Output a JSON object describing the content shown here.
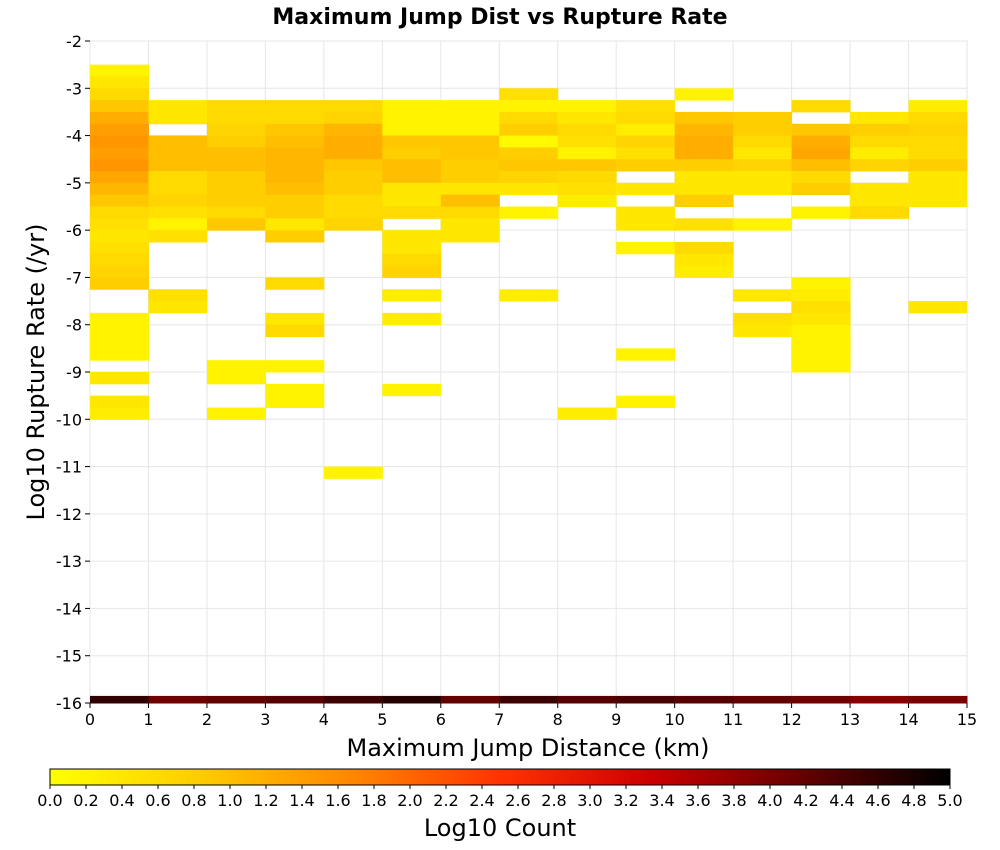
{
  "chart_data": {
    "type": "heatmap",
    "title": "Maximum Jump Dist vs Rupture Rate",
    "xlabel": "Maximum Jump Distance (km)",
    "ylabel": "Log10 Rupture Rate (/yr)",
    "xlim": [
      0,
      15
    ],
    "ylim": [
      -16,
      -2
    ],
    "x_ticks": [
      "0",
      "1",
      "2",
      "3",
      "4",
      "5",
      "6",
      "7",
      "8",
      "9",
      "10",
      "11",
      "12",
      "13",
      "14",
      "15"
    ],
    "y_ticks": [
      "-2",
      "-3",
      "-4",
      "-5",
      "-6",
      "-7",
      "-8",
      "-9",
      "-10",
      "-11",
      "-12",
      "-13",
      "-14",
      "-15",
      "-16"
    ],
    "grid": true,
    "x_bin_width": 1,
    "y_bin_height": 0.25,
    "colorscale": {
      "label": "Log10 Count",
      "min": 0.0,
      "max": 5.0,
      "ticks": [
        "0.0",
        "0.2",
        "0.4",
        "0.6",
        "0.8",
        "1.0",
        "1.2",
        "1.4",
        "1.6",
        "1.8",
        "2.0",
        "2.2",
        "2.4",
        "2.6",
        "2.8",
        "3.0",
        "3.2",
        "3.4",
        "3.6",
        "3.8",
        "4.0",
        "4.2",
        "4.4",
        "4.6",
        "4.8",
        "5.0"
      ],
      "colors": [
        "#ffff00",
        "#ffcc00",
        "#ff8800",
        "#ff3300",
        "#cc0000",
        "#660000",
        "#000000"
      ]
    },
    "columns": [
      {
        "x": 0,
        "y_start": -2.5,
        "values": [
          0.2,
          0.4,
          0.6,
          0.9,
          1.2,
          1.4,
          1.5,
          1.4,
          1.5,
          1.3,
          1.1,
          0.9,
          0.6,
          0.5,
          0.4,
          0.5,
          0.6,
          0.7,
          0.8,
          0,
          0,
          0.2,
          0.2,
          0.2,
          0.2,
          0,
          0.4,
          0,
          0,
          0.3
        ]
      },
      {
        "x": 1,
        "y_start": -3.25,
        "values": [
          0.4,
          0.4,
          0,
          1.0,
          1.0,
          1.0,
          0.6,
          0.6,
          0.7,
          0.5,
          0.2,
          0.5,
          0,
          0,
          0,
          0,
          0.5,
          0.4
        ]
      },
      {
        "x": 2,
        "y_start": -3.25,
        "values": [
          0.6,
          0.6,
          0.7,
          0.8,
          1.0,
          1.0,
          0.8,
          0.8,
          0.8,
          0.6,
          0.9
        ]
      },
      {
        "x": 3,
        "y_start": -3.25,
        "values": [
          0.6,
          0.6,
          0.9,
          1.0,
          1.1,
          1.1,
          1.1,
          1.0,
          0.8,
          0.8,
          0.4,
          0.8,
          0,
          0,
          0,
          0.6,
          0,
          0,
          0.4,
          0.6
        ]
      },
      {
        "x": 4,
        "y_start": -3.25,
        "values": [
          0.6,
          0.7,
          1.1,
          1.2,
          1.2,
          0.9,
          0.8,
          0.8,
          0.6,
          0.6,
          0.7
        ]
      },
      {
        "x": 5,
        "y_start": -3.25,
        "values": [
          0.2,
          0.2,
          0.2,
          0.9,
          0.8,
          1.0,
          1.0,
          0.4,
          0.4,
          0.6,
          0,
          0.4,
          0.4,
          0.6,
          0.7
        ]
      },
      {
        "x": 6,
        "y_start": -3.25,
        "values": [
          0.2,
          0.2,
          0.2,
          0.9,
          0.9,
          0.8,
          0.8,
          0.4,
          1.0,
          0.6,
          0.4,
          0.4
        ]
      },
      {
        "x": 7,
        "y_start": -3.0,
        "values": [
          0.5,
          0.2,
          0.6,
          0.8,
          0.1,
          0.8,
          0.9,
          0.7,
          0.4,
          0,
          0.2
        ]
      },
      {
        "x": 8,
        "y_start": -3.25,
        "values": [
          0.2,
          0.4,
          0.6,
          0.5,
          0.2,
          0.9,
          0.6,
          0.5,
          0.3
        ]
      },
      {
        "x": 9,
        "y_start": -3.25,
        "values": [
          0.5,
          0.6,
          0.3,
          0.7,
          0.5,
          0.8,
          0,
          0.4,
          0,
          0.4,
          0.4,
          0,
          0.2
        ]
      },
      {
        "x": 10,
        "y_start": -3.0,
        "values": [
          0.2,
          0,
          0.9,
          1.1,
          1.2,
          1.2,
          0.8,
          0.4,
          0.4,
          0.8,
          0,
          0.5,
          0,
          0.6,
          0.4
        ]
      },
      {
        "x": 11,
        "y_start": -3.5,
        "values": [
          0.8,
          0.8,
          0.6,
          0.4,
          0.7,
          0.4,
          0.4,
          0,
          0,
          0.2
        ]
      },
      {
        "x": 12,
        "y_start": -3.25,
        "values": [
          0.6,
          0,
          0.9,
          1.2,
          1.3,
          1.0,
          0.6,
          0.8,
          0,
          0.2
        ]
      },
      {
        "x": 13,
        "y_start": -3.5,
        "values": [
          0.4,
          0.8,
          0.6,
          0.3,
          0.7,
          0,
          0.4,
          0.4,
          0.6
        ]
      },
      {
        "x": 14,
        "y_start": -3.25,
        "values": [
          0.3,
          0.6,
          0.7,
          0.6,
          0.6,
          0.8,
          0.4,
          0.4,
          0.4
        ]
      }
    ],
    "extra_cells": [
      {
        "x": 0,
        "y_top": -9.5,
        "value": 0.4
      },
      {
        "x": 2,
        "y_top": -8.75,
        "value": 0.2
      },
      {
        "x": 2,
        "y_top": -9.0,
        "value": 0.2
      },
      {
        "x": 2,
        "y_top": -9.75,
        "value": 0.2
      },
      {
        "x": 3,
        "y_top": -8.75,
        "value": 0.2
      },
      {
        "x": 3,
        "y_top": -9.25,
        "value": 0.2
      },
      {
        "x": 3,
        "y_top": -9.5,
        "value": 0.2
      },
      {
        "x": 4,
        "y_top": -11.0,
        "value": 0.2
      },
      {
        "x": 5,
        "y_top": -9.25,
        "value": 0.2
      },
      {
        "x": 5,
        "y_top": -7.25,
        "value": 0.3
      },
      {
        "x": 5,
        "y_top": -7.75,
        "value": 0.3
      },
      {
        "x": 7,
        "y_top": -7.25,
        "value": 0.3
      },
      {
        "x": 8,
        "y_top": -9.75,
        "value": 0.3
      },
      {
        "x": 9,
        "y_top": -8.5,
        "value": 0.2
      },
      {
        "x": 9,
        "y_top": -9.5,
        "value": 0.2
      },
      {
        "x": 10,
        "y_top": -6.75,
        "value": 0.3
      },
      {
        "x": 11,
        "y_top": -7.25,
        "value": 0.4
      },
      {
        "x": 11,
        "y_top": -7.75,
        "value": 0.5
      },
      {
        "x": 11,
        "y_top": -8.0,
        "value": 0.4
      },
      {
        "x": 12,
        "y_top": -7.0,
        "value": 0.2
      },
      {
        "x": 12,
        "y_top": -7.25,
        "value": 0.3
      },
      {
        "x": 12,
        "y_top": -7.5,
        "value": 0.5
      },
      {
        "x": 12,
        "y_top": -7.75,
        "value": 0.4
      },
      {
        "x": 12,
        "y_top": -8.0,
        "value": 0.2
      },
      {
        "x": 12,
        "y_top": -8.25,
        "value": 0.2
      },
      {
        "x": 12,
        "y_top": -8.5,
        "value": 0.2
      },
      {
        "x": 12,
        "y_top": -8.75,
        "value": 0.2
      },
      {
        "x": 14,
        "y_top": -7.5,
        "value": 0.4
      }
    ],
    "bottom_row": {
      "y_top": -15.85,
      "y_bottom": -16.0,
      "values": [
        4.6,
        4.1,
        4.2,
        4.3,
        4.5,
        4.7,
        4.2,
        4.5,
        4.3,
        4.4,
        4.3,
        4.2,
        4.1,
        3.9,
        4.0
      ]
    }
  }
}
